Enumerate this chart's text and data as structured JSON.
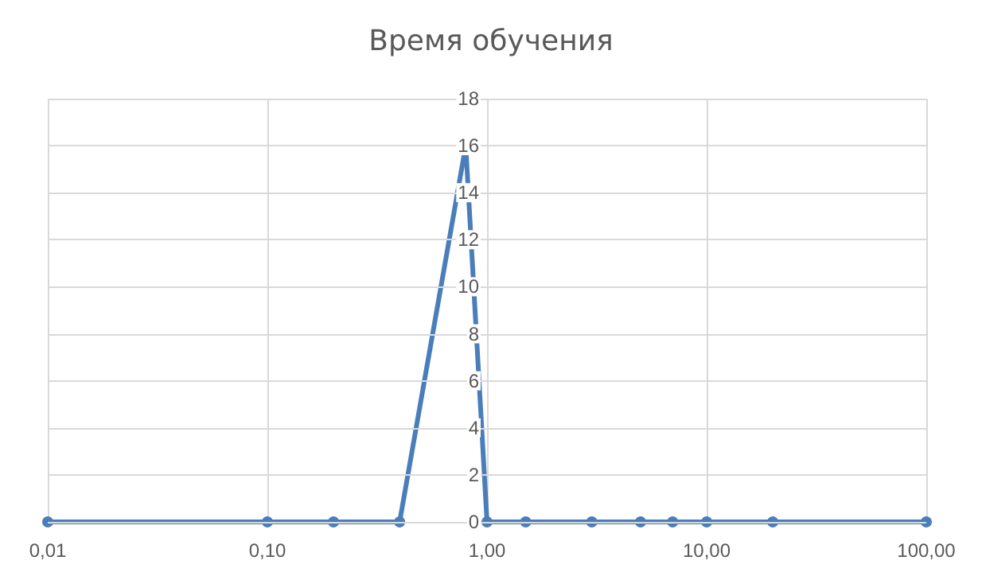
{
  "chart_data": {
    "type": "line",
    "title": "Время обучения",
    "x": [
      0.01,
      0.1,
      0.2,
      0.4,
      0.8,
      1,
      1.5,
      3,
      5,
      7,
      10,
      20,
      100
    ],
    "series": [
      {
        "color": "#4a7ebb",
        "values": [
          0,
          0,
          0,
          0,
          16,
          0,
          0,
          0,
          0,
          0,
          0,
          0,
          0
        ]
      }
    ],
    "log": "x",
    "xlim": [
      0.01,
      100
    ],
    "xticks": [
      {
        "value": 0.01,
        "label": "0,01"
      },
      {
        "value": 0.1,
        "label": "0,10"
      },
      {
        "value": 1,
        "label": "1,00"
      },
      {
        "value": 10,
        "label": "10,00"
      },
      {
        "value": 100,
        "label": "100,00"
      }
    ],
    "ylim": [
      0,
      18
    ],
    "yticks": [
      0,
      2,
      4,
      6,
      8,
      10,
      12,
      14,
      16,
      18
    ],
    "grid": true,
    "marker": "circle",
    "line_style": "solid"
  }
}
